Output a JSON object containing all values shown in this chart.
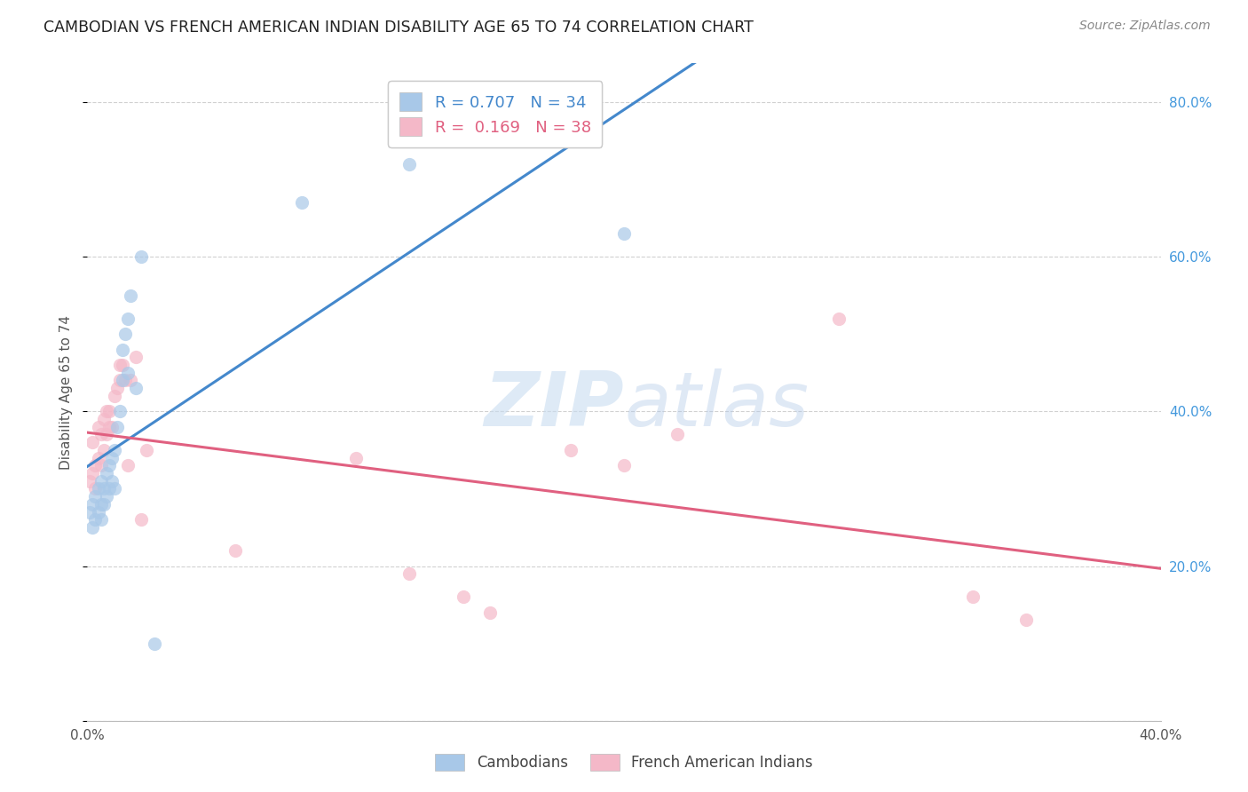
{
  "title": "CAMBODIAN VS FRENCH AMERICAN INDIAN DISABILITY AGE 65 TO 74 CORRELATION CHART",
  "source": "Source: ZipAtlas.com",
  "ylabel": "Disability Age 65 to 74",
  "xlim": [
    0.0,
    0.4
  ],
  "ylim": [
    0.0,
    0.85
  ],
  "cambodian_R": 0.707,
  "cambodian_N": 34,
  "french_R": 0.169,
  "french_N": 38,
  "cambodian_color": "#a8c8e8",
  "cambodian_line_color": "#4488cc",
  "french_color": "#f4b8c8",
  "french_line_color": "#e06080",
  "watermark_color": "#d8eaf8",
  "cambodian_x": [
    0.001,
    0.002,
    0.002,
    0.003,
    0.003,
    0.004,
    0.004,
    0.005,
    0.005,
    0.005,
    0.006,
    0.006,
    0.007,
    0.007,
    0.008,
    0.008,
    0.009,
    0.009,
    0.01,
    0.01,
    0.011,
    0.012,
    0.013,
    0.013,
    0.014,
    0.015,
    0.015,
    0.016,
    0.018,
    0.02,
    0.025,
    0.08,
    0.12,
    0.2
  ],
  "cambodian_y": [
    0.27,
    0.25,
    0.28,
    0.26,
    0.29,
    0.27,
    0.3,
    0.26,
    0.28,
    0.31,
    0.28,
    0.3,
    0.29,
    0.32,
    0.3,
    0.33,
    0.31,
    0.34,
    0.3,
    0.35,
    0.38,
    0.4,
    0.44,
    0.48,
    0.5,
    0.45,
    0.52,
    0.55,
    0.43,
    0.6,
    0.1,
    0.67,
    0.72,
    0.63
  ],
  "french_x": [
    0.001,
    0.002,
    0.002,
    0.003,
    0.003,
    0.004,
    0.004,
    0.005,
    0.005,
    0.006,
    0.006,
    0.007,
    0.007,
    0.008,
    0.008,
    0.009,
    0.01,
    0.011,
    0.012,
    0.012,
    0.013,
    0.014,
    0.015,
    0.016,
    0.018,
    0.02,
    0.022,
    0.055,
    0.1,
    0.12,
    0.14,
    0.15,
    0.18,
    0.2,
    0.22,
    0.28,
    0.33,
    0.35
  ],
  "french_y": [
    0.31,
    0.32,
    0.36,
    0.3,
    0.33,
    0.34,
    0.38,
    0.33,
    0.37,
    0.35,
    0.39,
    0.37,
    0.4,
    0.38,
    0.4,
    0.38,
    0.42,
    0.43,
    0.44,
    0.46,
    0.46,
    0.44,
    0.33,
    0.44,
    0.47,
    0.26,
    0.35,
    0.22,
    0.34,
    0.19,
    0.16,
    0.14,
    0.35,
    0.33,
    0.37,
    0.52,
    0.16,
    0.13
  ]
}
